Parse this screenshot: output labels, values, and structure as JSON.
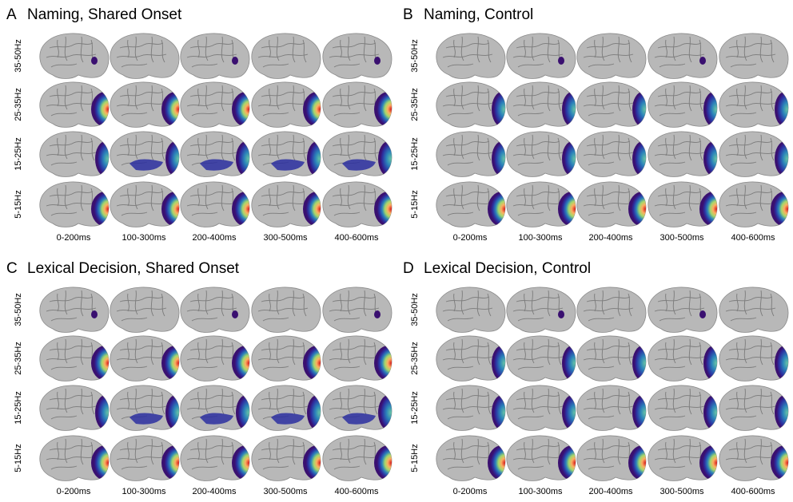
{
  "panels": [
    {
      "letter": "A",
      "title": "Naming, Shared Onset",
      "rows": [
        "35-50Hz",
        "25-35Hz",
        "15-25Hz",
        "5-15Hz"
      ],
      "columns": [
        "0-200ms",
        "100-300ms",
        "200-400ms",
        "300-500ms",
        "400-600ms"
      ]
    },
    {
      "letter": "B",
      "title": "Naming, Control",
      "rows": [
        "35-50Hz",
        "25-35Hz",
        "15-25Hz",
        "5-15Hz"
      ],
      "columns": [
        "0-200ms",
        "100-300ms",
        "200-400ms",
        "300-500ms",
        "400-600ms"
      ]
    },
    {
      "letter": "C",
      "title": "Lexical Decision, Shared Onset",
      "rows": [
        "35-50Hz",
        "25-35Hz",
        "15-25Hz",
        "5-15Hz"
      ],
      "columns": [
        "0-200ms",
        "100-300ms",
        "200-400ms",
        "300-500ms",
        "400-600ms"
      ]
    },
    {
      "letter": "D",
      "title": "Lexical Decision, Control",
      "rows": [
        "35-50Hz",
        "25-35Hz",
        "15-25Hz",
        "5-15Hz"
      ],
      "columns": [
        "0-200ms",
        "100-300ms",
        "200-400ms",
        "300-500ms",
        "400-600ms"
      ]
    }
  ]
}
